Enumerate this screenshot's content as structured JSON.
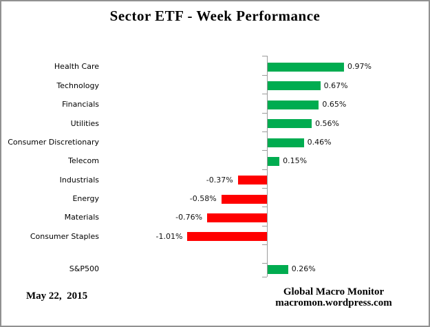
{
  "title": "Sector ETF - Week Performance",
  "date": "May 22,  2015",
  "attribution": {
    "line1": "Global Macro Monitor",
    "line2": "macromon.wordpress.com"
  },
  "colors": {
    "positive": "#00AC50",
    "negative": "#FF0000",
    "axis": "#9B9B9B",
    "text": "#000000",
    "frame_border": "#919191"
  },
  "chart_data": {
    "type": "bar",
    "orientation": "horizontal",
    "title": "Sector ETF - Week Performance",
    "xlabel": "",
    "ylabel": "",
    "grid": false,
    "legend": false,
    "xlim": [
      -1.2,
      1.2
    ],
    "categories": [
      "Health Care",
      "Technology",
      "Financials",
      "Utilities",
      "Consumer Discretionary",
      "Telecom",
      "Industrials",
      "Energy",
      "Materials",
      "Consumer Staples",
      "S&P500"
    ],
    "values": [
      0.97,
      0.67,
      0.65,
      0.56,
      0.46,
      0.15,
      -0.37,
      -0.58,
      -0.76,
      -1.01,
      0.26
    ],
    "value_labels": [
      "0.97%",
      "0.67%",
      "0.65%",
      "0.56%",
      "0.46%",
      "0.15%",
      "-0.37%",
      "-0.58%",
      "-0.76%",
      "-1.01%",
      "0.26%"
    ],
    "color_rule": "green if positive, red if negative",
    "note": "S&P500 row separated by one empty slot below sector bars"
  }
}
